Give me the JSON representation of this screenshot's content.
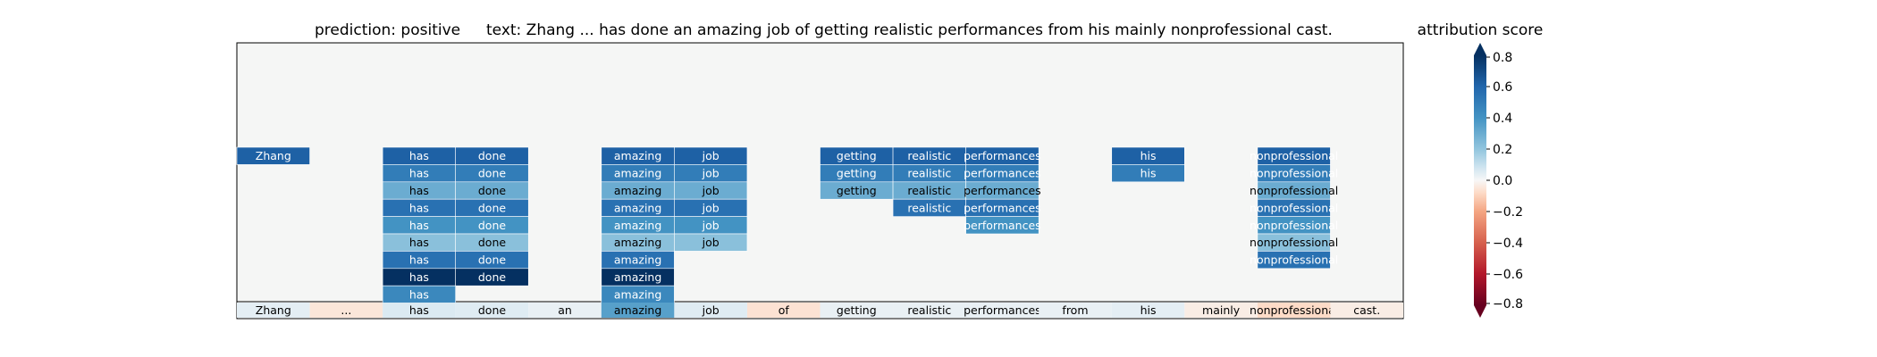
{
  "title": {
    "prediction": "prediction:  positive",
    "text": "text:  Zhang ... has done an amazing job of getting realistic performances from his mainly nonprofessional cast."
  },
  "colorbar": {
    "label": "attribution score",
    "ticks": [
      "0.8",
      "0.6",
      "0.4",
      "0.2",
      "0.0",
      "−0.2",
      "−0.4",
      "−0.6",
      "−0.8"
    ],
    "tick_values": [
      0.8,
      0.6,
      0.4,
      0.2,
      0.0,
      -0.2,
      -0.4,
      -0.6,
      -0.8
    ],
    "range": [
      -0.8,
      0.8
    ],
    "colormap": "RdBu"
  },
  "chart_data": {
    "type": "heatmap",
    "tokens": [
      "Zhang",
      "...",
      "has",
      "done",
      "an",
      "amazing",
      "job",
      "of",
      "getting",
      "realistic",
      "performances",
      "from",
      "his",
      "mainly",
      "nonprofessional",
      "cast."
    ],
    "token_scores": [
      0.04,
      -0.05,
      0.06,
      0.05,
      0.03,
      0.35,
      0.05,
      -0.06,
      0.03,
      0.03,
      0.03,
      0.03,
      0.04,
      -0.03,
      -0.08,
      -0.03
    ],
    "layers": [
      {
        "Zhang": 0.62,
        "has": 0.62,
        "done": 0.62,
        "amazing": 0.62,
        "job": 0.62,
        "getting": 0.62,
        "realistic": 0.62,
        "performances": 0.62,
        "his": 0.62,
        "nonprofessional": 0.62
      },
      {
        "has": 0.5,
        "done": 0.5,
        "amazing": 0.5,
        "job": 0.5,
        "getting": 0.5,
        "realistic": 0.5,
        "performances": 0.5,
        "his": 0.5,
        "nonprofessional": 0.5
      },
      {
        "has": 0.3,
        "done": 0.3,
        "amazing": 0.3,
        "job": 0.3,
        "getting": 0.3,
        "realistic": 0.3,
        "performances": 0.3,
        "nonprofessional": 0.3
      },
      {
        "has": 0.55,
        "done": 0.55,
        "amazing": 0.55,
        "job": 0.55,
        "realistic": 0.55,
        "performances": 0.55,
        "nonprofessional": 0.55
      },
      {
        "has": 0.4,
        "done": 0.4,
        "amazing": 0.4,
        "job": 0.4,
        "performances": 0.4,
        "nonprofessional": 0.4
      },
      {
        "has": 0.22,
        "done": 0.22,
        "amazing": 0.22,
        "job": 0.22,
        "nonprofessional": 0.22
      },
      {
        "has": 0.55,
        "done": 0.55,
        "amazing": 0.55,
        "nonprofessional": 0.55
      },
      {
        "has": 0.8,
        "done": 0.8,
        "amazing": 0.8
      },
      {
        "has": 0.45,
        "amazing": 0.45
      }
    ]
  }
}
